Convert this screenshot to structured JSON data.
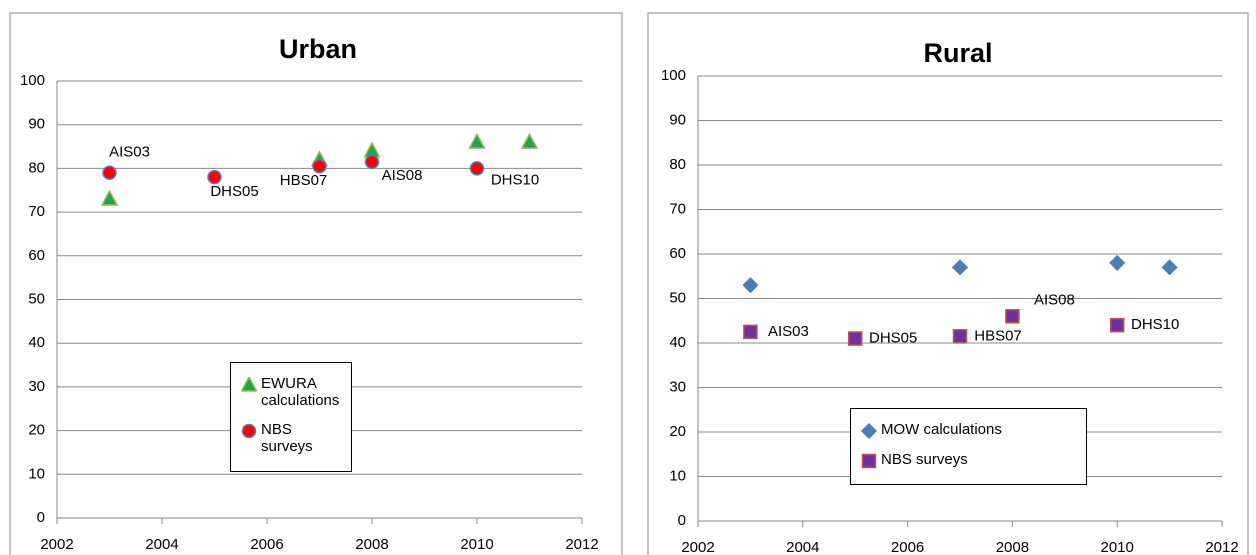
{
  "chart_data": [
    {
      "type": "scatter",
      "title": "Urban",
      "xlim": [
        2002,
        2012
      ],
      "xticks": [
        2002,
        2004,
        2006,
        2008,
        2010,
        2012
      ],
      "ylim": [
        0,
        100
      ],
      "yticks": [
        0,
        10,
        20,
        30,
        40,
        50,
        60,
        70,
        80,
        90,
        100
      ],
      "grid": true,
      "series": [
        {
          "name": "EWURA calculations",
          "marker": "triangle",
          "color": "#1fa64b",
          "edge": "#9bbb59",
          "x": [
            2003,
            2007,
            2008,
            2010,
            2011
          ],
          "values": [
            73,
            82,
            84,
            86,
            86
          ]
        },
        {
          "name": "NBS surveys",
          "marker": "circle",
          "color": "#ff0000",
          "edge": "#4f81bd",
          "x": [
            2003,
            2005,
            2007,
            2008,
            2010
          ],
          "values": [
            79,
            78,
            80.5,
            81.5,
            80
          ],
          "point_labels": [
            "AIS03",
            "DHS05",
            "HBS07",
            "AIS08",
            "DHS10"
          ]
        }
      ]
    },
    {
      "type": "scatter",
      "title": "Rural",
      "xlim": [
        2002,
        2012
      ],
      "xticks": [
        2002,
        2004,
        2006,
        2008,
        2010,
        2012
      ],
      "ylim": [
        0,
        100
      ],
      "yticks": [
        0,
        10,
        20,
        30,
        40,
        50,
        60,
        70,
        80,
        90,
        100
      ],
      "grid": true,
      "series": [
        {
          "name": "MOW calculations",
          "marker": "diamond",
          "color": "#4a7ebb",
          "edge": "#4a7ebb",
          "x": [
            2003,
            2007,
            2010,
            2011
          ],
          "values": [
            53,
            57,
            58,
            57
          ]
        },
        {
          "name": "NBS surveys",
          "marker": "square",
          "color": "#7030a0",
          "edge": "#c0504d",
          "x": [
            2003,
            2005,
            2007,
            2008,
            2010
          ],
          "values": [
            42.5,
            41,
            41.5,
            46,
            44
          ],
          "point_labels": [
            "AIS03",
            "DHS05",
            "HBS07",
            "AIS08",
            "DHS10"
          ]
        }
      ]
    }
  ]
}
